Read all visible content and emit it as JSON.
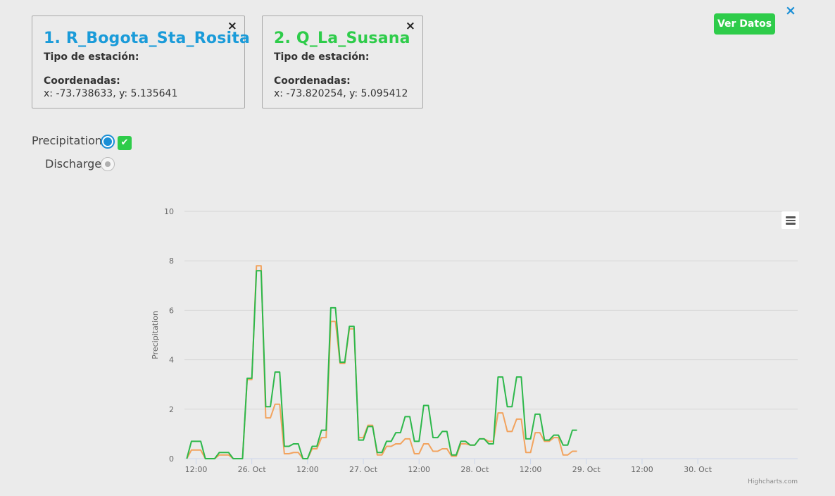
{
  "stations": [
    {
      "title": "1. R_Bogota_Sta_Rosita",
      "color": "#1a9bd9",
      "type_label": "Tipo de estación:",
      "coords_label": "Coordenadas:",
      "coords": "x: -73.738633, y: 5.135641",
      "close": "×"
    },
    {
      "title": "2. Q_La_Susana",
      "color": "#2ecc4a",
      "type_label": "Tipo de estación:",
      "coords_label": "Coordenadas:",
      "coords": "x: -73.820254, y: 5.095412",
      "close": "×"
    }
  ],
  "ver_datos": "Ver Datos",
  "panel_close": "×",
  "variables": {
    "precipitation": "Precipitation",
    "discharge": "Discharge",
    "selected": "Precipitation"
  },
  "chart_data": {
    "type": "line",
    "ylabel": "Precipitation",
    "ylim": [
      0,
      10
    ],
    "yticks": [
      0,
      2,
      4,
      6,
      8,
      10
    ],
    "x_domain_hours": [
      -14.5,
      117.5
    ],
    "xticks": [
      {
        "label": "12:00",
        "hour": -12
      },
      {
        "label": "26. Oct",
        "hour": 0
      },
      {
        "label": "12:00",
        "hour": 12
      },
      {
        "label": "27. Oct",
        "hour": 24
      },
      {
        "label": "12:00",
        "hour": 36
      },
      {
        "label": "28. Oct",
        "hour": 48
      },
      {
        "label": "12:00",
        "hour": 60
      },
      {
        "label": "29. Oct",
        "hour": 72
      },
      {
        "label": "12:00",
        "hour": 84
      },
      {
        "label": "30. Oct",
        "hour": 96
      }
    ],
    "credit": "Highcharts.com",
    "series": [
      {
        "color": "#f2a35e",
        "values": [
          [
            -14,
            0
          ],
          [
            -13,
            0.35
          ],
          [
            -12,
            0.35
          ],
          [
            -11,
            0.35
          ],
          [
            -10,
            0
          ],
          [
            -9,
            0
          ],
          [
            -8,
            0
          ],
          [
            -7,
            0.15
          ],
          [
            -6,
            0.15
          ],
          [
            -5,
            0.15
          ],
          [
            -4,
            0
          ],
          [
            -3,
            0
          ],
          [
            -2,
            0
          ],
          [
            -1,
            3.2
          ],
          [
            0,
            3.2
          ],
          [
            1,
            7.8
          ],
          [
            2,
            7.8
          ],
          [
            3,
            1.65
          ],
          [
            4,
            1.65
          ],
          [
            5,
            2.2
          ],
          [
            6,
            2.2
          ],
          [
            7,
            0.2
          ],
          [
            8,
            0.2
          ],
          [
            9,
            0.25
          ],
          [
            10,
            0.25
          ],
          [
            11,
            0
          ],
          [
            12,
            0
          ],
          [
            13,
            0.4
          ],
          [
            14,
            0.4
          ],
          [
            15,
            0.85
          ],
          [
            16,
            0.85
          ],
          [
            17,
            5.55
          ],
          [
            18,
            5.55
          ],
          [
            19,
            3.85
          ],
          [
            20,
            3.85
          ],
          [
            21,
            5.25
          ],
          [
            22,
            5.25
          ],
          [
            23,
            0.85
          ],
          [
            24,
            0.85
          ],
          [
            25,
            1.35
          ],
          [
            26,
            1.35
          ],
          [
            27,
            0.15
          ],
          [
            28,
            0.15
          ],
          [
            29,
            0.5
          ],
          [
            30,
            0.5
          ],
          [
            31,
            0.6
          ],
          [
            32,
            0.6
          ],
          [
            33,
            0.8
          ],
          [
            34,
            0.8
          ],
          [
            35,
            0.2
          ],
          [
            36,
            0.2
          ],
          [
            37,
            0.6
          ],
          [
            38,
            0.6
          ],
          [
            39,
            0.3
          ],
          [
            40,
            0.3
          ],
          [
            41,
            0.4
          ],
          [
            42,
            0.4
          ],
          [
            43,
            0.1
          ],
          [
            44,
            0.1
          ],
          [
            45,
            0.6
          ],
          [
            46,
            0.6
          ],
          [
            47,
            0.55
          ],
          [
            48,
            0.55
          ],
          [
            49,
            0.8
          ],
          [
            50,
            0.8
          ],
          [
            51,
            0.7
          ],
          [
            52,
            0.7
          ],
          [
            53,
            1.85
          ],
          [
            54,
            1.85
          ],
          [
            55,
            1.1
          ],
          [
            56,
            1.1
          ],
          [
            57,
            1.6
          ],
          [
            58,
            1.6
          ],
          [
            59,
            0.25
          ],
          [
            60,
            0.25
          ],
          [
            61,
            1.05
          ],
          [
            62,
            1.05
          ],
          [
            63,
            0.7
          ],
          [
            64,
            0.7
          ],
          [
            65,
            0.85
          ],
          [
            66,
            0.85
          ],
          [
            67,
            0.15
          ],
          [
            68,
            0.15
          ],
          [
            69,
            0.3
          ],
          [
            70,
            0.3
          ]
        ]
      },
      {
        "color": "#2db84b",
        "values": [
          [
            -14,
            0
          ],
          [
            -13,
            0.7
          ],
          [
            -12,
            0.7
          ],
          [
            -11,
            0.7
          ],
          [
            -10,
            0
          ],
          [
            -9,
            0
          ],
          [
            -8,
            0
          ],
          [
            -7,
            0.25
          ],
          [
            -6,
            0.25
          ],
          [
            -5,
            0.25
          ],
          [
            -4,
            0
          ],
          [
            -3,
            0
          ],
          [
            -2,
            0
          ],
          [
            -1,
            3.25
          ],
          [
            0,
            3.25
          ],
          [
            1,
            7.6
          ],
          [
            2,
            7.6
          ],
          [
            3,
            2.1
          ],
          [
            4,
            2.1
          ],
          [
            5,
            3.5
          ],
          [
            6,
            3.5
          ],
          [
            7,
            0.5
          ],
          [
            8,
            0.5
          ],
          [
            9,
            0.6
          ],
          [
            10,
            0.6
          ],
          [
            11,
            0
          ],
          [
            12,
            0
          ],
          [
            13,
            0.5
          ],
          [
            14,
            0.5
          ],
          [
            15,
            1.15
          ],
          [
            16,
            1.15
          ],
          [
            17,
            6.1
          ],
          [
            18,
            6.1
          ],
          [
            19,
            3.9
          ],
          [
            20,
            3.9
          ],
          [
            21,
            5.35
          ],
          [
            22,
            5.35
          ],
          [
            23,
            0.75
          ],
          [
            24,
            0.75
          ],
          [
            25,
            1.3
          ],
          [
            26,
            1.3
          ],
          [
            27,
            0.25
          ],
          [
            28,
            0.25
          ],
          [
            29,
            0.7
          ],
          [
            30,
            0.7
          ],
          [
            31,
            1.05
          ],
          [
            32,
            1.05
          ],
          [
            33,
            1.7
          ],
          [
            34,
            1.7
          ],
          [
            35,
            0.7
          ],
          [
            36,
            0.7
          ],
          [
            37,
            2.15
          ],
          [
            38,
            2.15
          ],
          [
            39,
            0.85
          ],
          [
            40,
            0.85
          ],
          [
            41,
            1.1
          ],
          [
            42,
            1.1
          ],
          [
            43,
            0.15
          ],
          [
            44,
            0.15
          ],
          [
            45,
            0.7
          ],
          [
            46,
            0.7
          ],
          [
            47,
            0.55
          ],
          [
            48,
            0.55
          ],
          [
            49,
            0.8
          ],
          [
            50,
            0.8
          ],
          [
            51,
            0.6
          ],
          [
            52,
            0.6
          ],
          [
            53,
            3.3
          ],
          [
            54,
            3.3
          ],
          [
            55,
            2.1
          ],
          [
            56,
            2.1
          ],
          [
            57,
            3.3
          ],
          [
            58,
            3.3
          ],
          [
            59,
            0.8
          ],
          [
            60,
            0.8
          ],
          [
            61,
            1.8
          ],
          [
            62,
            1.8
          ],
          [
            63,
            0.75
          ],
          [
            64,
            0.75
          ],
          [
            65,
            0.95
          ],
          [
            66,
            0.95
          ],
          [
            67,
            0.55
          ],
          [
            68,
            0.55
          ],
          [
            69,
            1.15
          ],
          [
            70,
            1.15
          ]
        ]
      }
    ]
  }
}
